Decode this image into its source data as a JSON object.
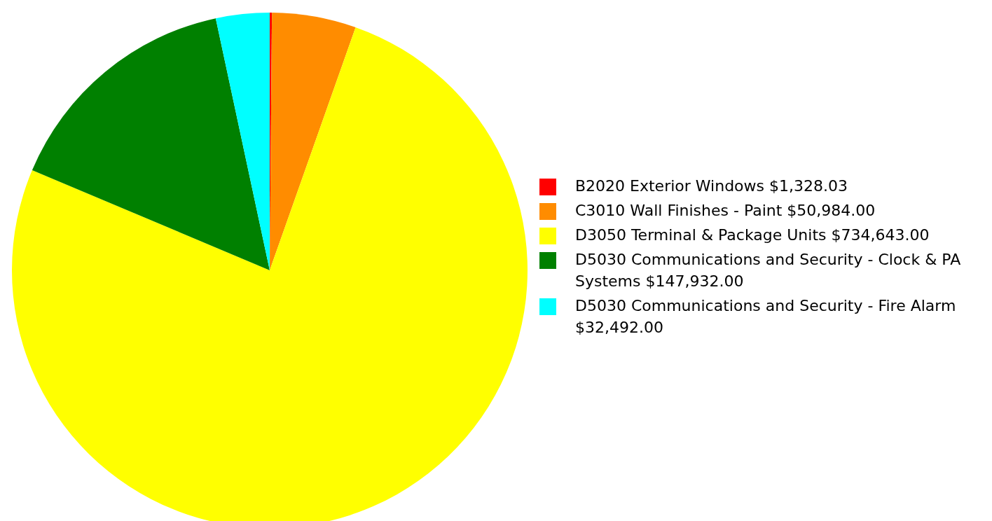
{
  "chart_data": {
    "type": "pie",
    "categories": [
      "B2020 Exterior Windows",
      "C3010 Wall Finishes - Paint",
      "D3050 Terminal & Package Units",
      "D5030 Communications and Security - Clock & PA Systems",
      "D5030 Communications and Security - Fire Alarm"
    ],
    "values": [
      1328.03,
      50984,
      734643,
      147932,
      32492
    ],
    "value_labels": [
      "$1,328.03",
      "$50,984.00",
      "$734,643.00",
      "$147,932.00",
      "$32,492.00"
    ],
    "colors": [
      "#ff0000",
      "#ff8c00",
      "#ffff00",
      "#008000",
      "#00ffff"
    ],
    "legend": "right"
  }
}
